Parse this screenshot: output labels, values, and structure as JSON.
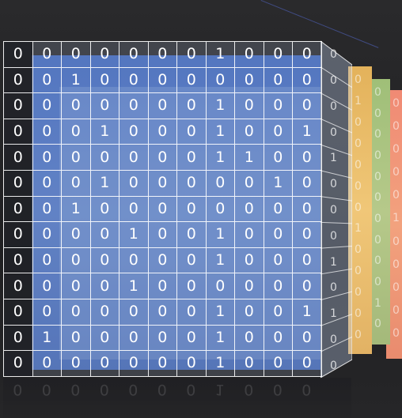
{
  "matrix": {
    "rows": [
      [
        "0",
        "0",
        "0",
        "0",
        "0",
        "0",
        "0",
        "1",
        "0",
        "0",
        "0"
      ],
      [
        "0",
        "0",
        "1",
        "0",
        "0",
        "0",
        "0",
        "0",
        "0",
        "0",
        "0"
      ],
      [
        "0",
        "0",
        "0",
        "0",
        "0",
        "0",
        "0",
        "1",
        "0",
        "0",
        "0"
      ],
      [
        "0",
        "0",
        "0",
        "1",
        "0",
        "0",
        "0",
        "1",
        "0",
        "0",
        "1"
      ],
      [
        "0",
        "0",
        "0",
        "0",
        "0",
        "0",
        "0",
        "1",
        "1",
        "0",
        "0"
      ],
      [
        "0",
        "0",
        "0",
        "1",
        "0",
        "0",
        "0",
        "0",
        "0",
        "1",
        "0"
      ],
      [
        "0",
        "0",
        "1",
        "0",
        "0",
        "0",
        "0",
        "0",
        "0",
        "0",
        "0"
      ],
      [
        "0",
        "0",
        "0",
        "0",
        "1",
        "0",
        "0",
        "1",
        "0",
        "0",
        "0"
      ],
      [
        "0",
        "0",
        "0",
        "0",
        "0",
        "0",
        "0",
        "1",
        "0",
        "0",
        "0"
      ],
      [
        "0",
        "0",
        "0",
        "0",
        "1",
        "0",
        "0",
        "0",
        "0",
        "0",
        "0"
      ],
      [
        "0",
        "0",
        "0",
        "0",
        "0",
        "0",
        "0",
        "1",
        "0",
        "0",
        "1"
      ],
      [
        "0",
        "1",
        "0",
        "0",
        "0",
        "0",
        "0",
        "1",
        "0",
        "0",
        "0"
      ],
      [
        "0",
        "0",
        "0",
        "0",
        "0",
        "0",
        "0",
        "1",
        "0",
        "0",
        "0"
      ]
    ],
    "side_face_digits": [
      "0",
      "0",
      "0",
      "0",
      "1",
      "0",
      "0",
      "0",
      "1",
      "0",
      "1",
      "0",
      "0"
    ],
    "yellow_layer_digits": [
      "0",
      "1",
      "0",
      "0",
      "0",
      "0",
      "0",
      "1",
      "0",
      "0",
      "0",
      "0",
      "0"
    ],
    "green_layer_digits": [
      "0",
      "0",
      "0",
      "0",
      "0",
      "0",
      "0",
      "0",
      "0",
      "0",
      "1",
      "0"
    ],
    "salmon_layer_digits": [
      "0",
      "0",
      "0",
      "0",
      "0",
      "1",
      "0",
      "0",
      "0",
      "0",
      "0"
    ]
  },
  "colors": {
    "front_layer": "#4a6fbd",
    "layer_yellow": "#f0c778",
    "layer_green": "#b6c98a",
    "layer_salmon": "#f2a27e",
    "background": "#232325"
  }
}
